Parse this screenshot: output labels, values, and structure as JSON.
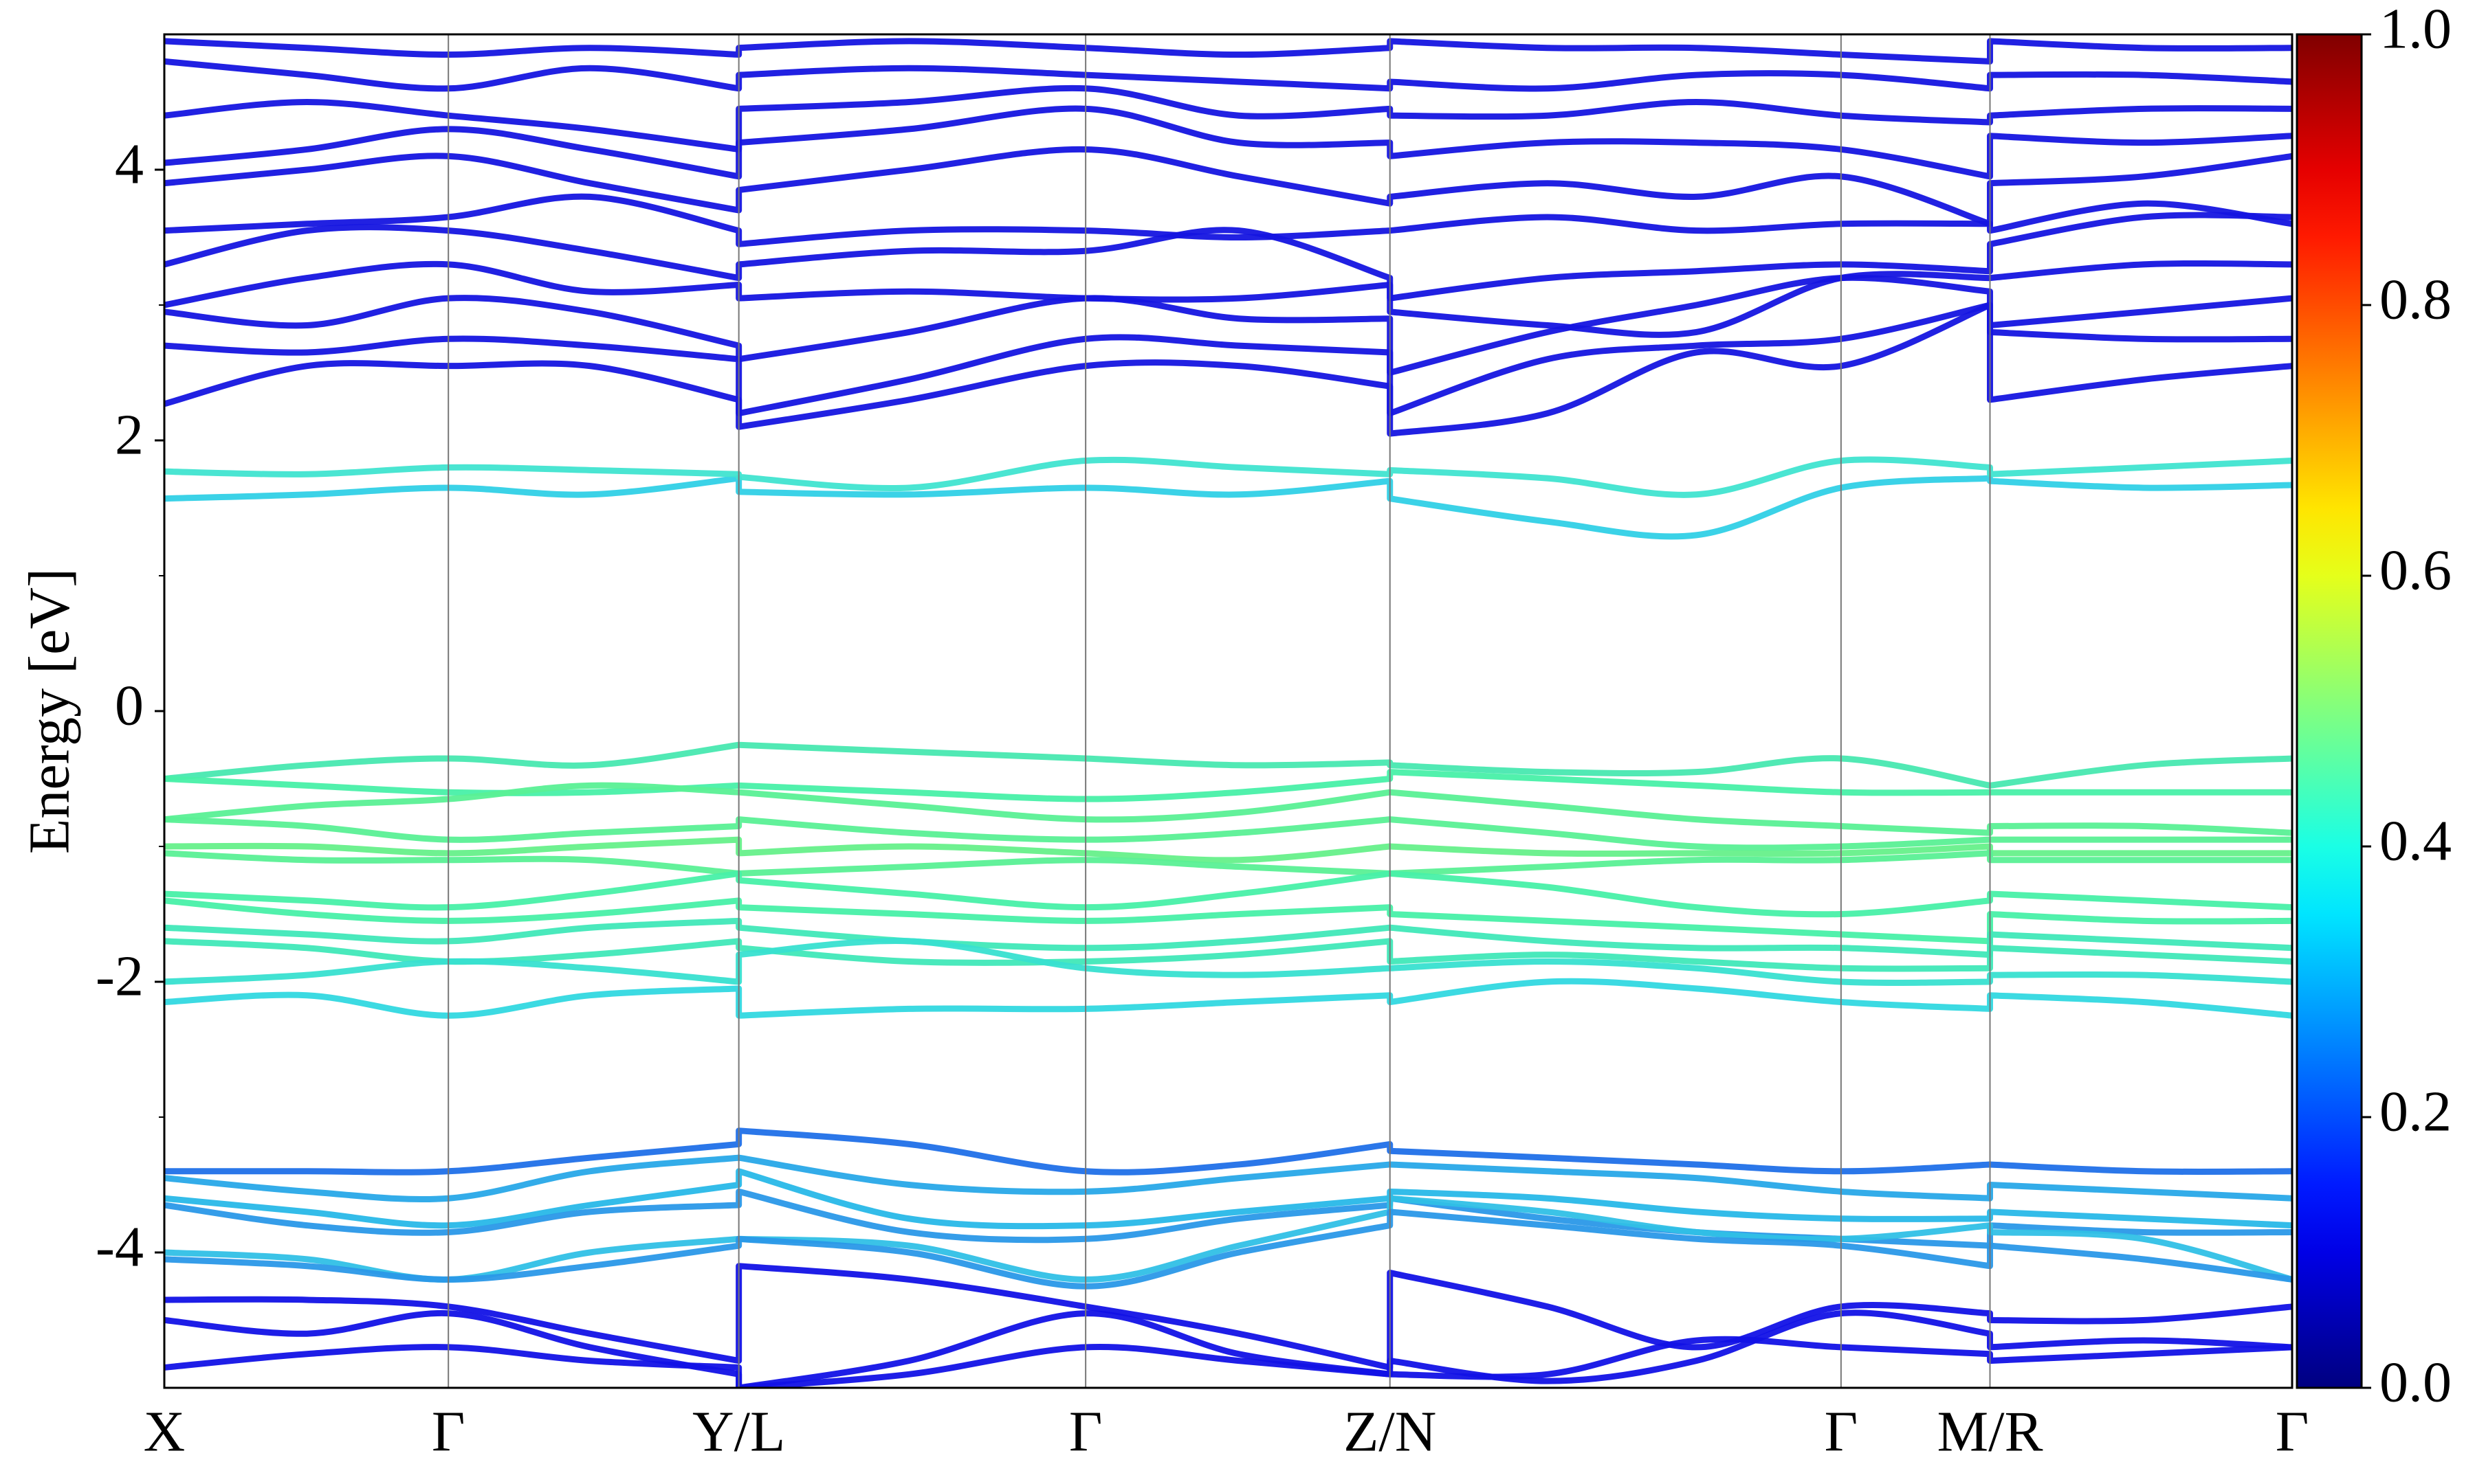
{
  "chart_data": {
    "type": "line",
    "ylabel": "Energy [eV]",
    "x": [
      0,
      0.067,
      0.1335,
      0.2,
      0.27,
      0.27,
      0.35,
      0.433,
      0.505,
      0.576,
      0.576,
      0.65,
      0.72,
      0.788,
      0.858,
      0.858,
      0.93,
      1.0
    ],
    "xlim": [
      0,
      1
    ],
    "xticks": [
      {
        "value": 0,
        "label": "X"
      },
      {
        "value": 0.1335,
        "label": "Γ"
      },
      {
        "value": 0.27,
        "label": "Y/L"
      },
      {
        "value": 0.433,
        "label": "Γ"
      },
      {
        "value": 0.576,
        "label": "Z/N"
      },
      {
        "value": 0.788,
        "label": "Γ"
      },
      {
        "value": 0.858,
        "label": "M/R"
      },
      {
        "value": 1.0,
        "label": "Γ"
      }
    ],
    "ylim": [
      -5,
      5
    ],
    "yticks": [
      -4,
      -2,
      0,
      2,
      4
    ],
    "yminorticks": [
      -3,
      -1,
      1,
      3
    ],
    "vertical_lines": true,
    "colorbar": {
      "colormap": "jet",
      "lim": [
        0,
        1
      ],
      "ticks": [
        {
          "value": 0,
          "label": "0.0"
        },
        {
          "value": 0.2,
          "label": "0.2"
        },
        {
          "value": 0.4,
          "label": "0.4"
        },
        {
          "value": 0.6,
          "label": "0.6"
        },
        {
          "value": 0.8,
          "label": "0.8"
        },
        {
          "value": 1.0,
          "label": "1.0"
        }
      ]
    },
    "series": [
      {
        "color": "#1515e0",
        "values": [
          2.27,
          2.55,
          2.55,
          2.55,
          2.3,
          2.1,
          2.3,
          2.55,
          2.55,
          2.4,
          2.05,
          2.2,
          2.65,
          2.55,
          3.0,
          2.3,
          2.45,
          2.55
        ]
      },
      {
        "color": "#1515e0",
        "values": [
          2.7,
          2.65,
          2.75,
          2.7,
          2.6,
          2.2,
          2.45,
          2.75,
          2.7,
          2.65,
          2.2,
          2.6,
          2.7,
          2.75,
          3.0,
          2.8,
          2.75,
          2.75
        ]
      },
      {
        "color": "#1515e0",
        "values": [
          2.95,
          2.85,
          3.05,
          2.95,
          2.7,
          2.6,
          2.8,
          3.05,
          2.9,
          2.9,
          2.5,
          2.8,
          3.0,
          3.2,
          3.1,
          2.85,
          2.95,
          3.05
        ]
      },
      {
        "color": "#1515e0",
        "values": [
          3.0,
          3.2,
          3.3,
          3.1,
          3.15,
          3.05,
          3.1,
          3.05,
          3.05,
          3.15,
          2.95,
          2.85,
          2.8,
          3.2,
          3.2,
          3.2,
          3.3,
          3.3
        ]
      },
      {
        "color": "#1515e0",
        "values": [
          3.3,
          3.55,
          3.55,
          3.4,
          3.2,
          3.3,
          3.4,
          3.4,
          3.55,
          3.2,
          3.05,
          3.2,
          3.25,
          3.3,
          3.25,
          3.45,
          3.65,
          3.65
        ]
      },
      {
        "color": "#1515e0",
        "values": [
          3.55,
          3.6,
          3.65,
          3.8,
          3.55,
          3.45,
          3.55,
          3.55,
          3.5,
          3.55,
          3.55,
          3.65,
          3.55,
          3.6,
          3.6,
          3.55,
          3.75,
          3.6
        ]
      },
      {
        "color": "#1515e0",
        "values": [
          3.9,
          4.0,
          4.1,
          3.9,
          3.7,
          3.85,
          4.0,
          4.15,
          3.95,
          3.75,
          3.8,
          3.9,
          3.8,
          3.95,
          3.6,
          3.9,
          3.95,
          4.1
        ]
      },
      {
        "color": "#1515e0",
        "values": [
          4.05,
          4.15,
          4.3,
          4.15,
          3.95,
          4.2,
          4.3,
          4.45,
          4.2,
          4.2,
          4.1,
          4.2,
          4.2,
          4.15,
          3.95,
          4.25,
          4.2,
          4.25
        ]
      },
      {
        "color": "#1515e0",
        "values": [
          4.4,
          4.5,
          4.4,
          4.3,
          4.15,
          4.45,
          4.5,
          4.6,
          4.4,
          4.45,
          4.4,
          4.4,
          4.5,
          4.4,
          4.35,
          4.4,
          4.45,
          4.45
        ]
      },
      {
        "color": "#1515e0",
        "values": [
          4.8,
          4.7,
          4.6,
          4.75,
          4.6,
          4.7,
          4.75,
          4.7,
          4.65,
          4.6,
          4.65,
          4.6,
          4.7,
          4.7,
          4.6,
          4.7,
          4.7,
          4.65
        ]
      },
      {
        "color": "#1515e0",
        "values": [
          4.95,
          4.9,
          4.85,
          4.9,
          4.85,
          4.9,
          4.95,
          4.9,
          4.85,
          4.9,
          4.95,
          4.9,
          4.9,
          4.85,
          4.8,
          4.95,
          4.9,
          4.9
        ]
      },
      {
        "color": "#30d0e6",
        "values": [
          1.57,
          1.6,
          1.65,
          1.6,
          1.72,
          1.62,
          1.6,
          1.65,
          1.6,
          1.7,
          1.57,
          1.4,
          1.3,
          1.65,
          1.72,
          1.7,
          1.65,
          1.67
        ]
      },
      {
        "color": "#40e4d0",
        "values": [
          1.77,
          1.75,
          1.8,
          1.78,
          1.75,
          1.73,
          1.65,
          1.85,
          1.8,
          1.75,
          1.78,
          1.72,
          1.6,
          1.85,
          1.8,
          1.75,
          1.8,
          1.85
        ]
      },
      {
        "color": "#48e8b0",
        "values": [
          -0.5,
          -0.4,
          -0.35,
          -0.4,
          -0.25,
          -0.25,
          -0.3,
          -0.35,
          -0.4,
          -0.38,
          -0.4,
          -0.45,
          -0.45,
          -0.35,
          -0.55,
          -0.55,
          -0.4,
          -0.35
        ]
      },
      {
        "color": "#48f0a8",
        "values": [
          -0.5,
          -0.55,
          -0.6,
          -0.6,
          -0.55,
          -0.55,
          -0.6,
          -0.65,
          -0.6,
          -0.5,
          -0.45,
          -0.5,
          -0.55,
          -0.6,
          -0.6,
          -0.6,
          -0.6,
          -0.6
        ]
      },
      {
        "color": "#5af095",
        "values": [
          -0.8,
          -0.7,
          -0.65,
          -0.55,
          -0.6,
          -0.6,
          -0.7,
          -0.8,
          -0.75,
          -0.6,
          -0.6,
          -0.7,
          -0.8,
          -0.85,
          -0.9,
          -0.85,
          -0.85,
          -0.9
        ]
      },
      {
        "color": "#5af095",
        "values": [
          -0.8,
          -0.85,
          -0.95,
          -0.9,
          -0.85,
          -0.8,
          -0.9,
          -0.95,
          -0.9,
          -0.8,
          -0.8,
          -0.9,
          -1.0,
          -1.0,
          -0.95,
          -0.95,
          -0.95,
          -0.95
        ]
      },
      {
        "color": "#66f08a",
        "values": [
          -1.0,
          -1.0,
          -1.05,
          -1.0,
          -0.95,
          -1.05,
          -1.0,
          -1.05,
          -1.1,
          -1.0,
          -1.0,
          -1.05,
          -1.05,
          -1.05,
          -1.0,
          -1.05,
          -1.05,
          -1.05
        ]
      },
      {
        "color": "#5af095",
        "values": [
          -1.05,
          -1.1,
          -1.1,
          -1.1,
          -1.2,
          -1.2,
          -1.15,
          -1.1,
          -1.15,
          -1.2,
          -1.2,
          -1.15,
          -1.1,
          -1.1,
          -1.05,
          -1.1,
          -1.1,
          -1.1
        ]
      },
      {
        "color": "#48f0a8",
        "values": [
          -1.35,
          -1.4,
          -1.45,
          -1.35,
          -1.2,
          -1.25,
          -1.35,
          -1.45,
          -1.35,
          -1.2,
          -1.2,
          -1.3,
          -1.45,
          -1.5,
          -1.4,
          -1.35,
          -1.4,
          -1.45
        ]
      },
      {
        "color": "#48f0a8",
        "values": [
          -1.4,
          -1.5,
          -1.55,
          -1.5,
          -1.4,
          -1.45,
          -1.5,
          -1.55,
          -1.5,
          -1.45,
          -1.5,
          -1.55,
          -1.6,
          -1.65,
          -1.7,
          -1.5,
          -1.55,
          -1.55
        ]
      },
      {
        "color": "#40e8b8",
        "values": [
          -1.6,
          -1.65,
          -1.7,
          -1.6,
          -1.55,
          -1.6,
          -1.7,
          -1.75,
          -1.7,
          -1.6,
          -1.6,
          -1.7,
          -1.75,
          -1.75,
          -1.8,
          -1.65,
          -1.7,
          -1.75
        ]
      },
      {
        "color": "#40e8b8",
        "values": [
          -1.7,
          -1.75,
          -1.85,
          -1.8,
          -1.7,
          -1.75,
          -1.85,
          -1.85,
          -1.8,
          -1.7,
          -1.85,
          -1.8,
          -1.85,
          -1.9,
          -1.9,
          -1.75,
          -1.8,
          -1.85
        ]
      },
      {
        "color": "#38e0d0",
        "values": [
          -2.0,
          -1.95,
          -1.85,
          -1.9,
          -2.0,
          -1.8,
          -1.7,
          -1.9,
          -1.95,
          -1.9,
          -1.9,
          -1.85,
          -1.9,
          -2.0,
          -2.0,
          -1.95,
          -1.95,
          -2.0
        ]
      },
      {
        "color": "#32d8e0",
        "values": [
          -2.15,
          -2.1,
          -2.25,
          -2.1,
          -2.05,
          -2.25,
          -2.2,
          -2.2,
          -2.15,
          -2.1,
          -2.15,
          -2.0,
          -2.05,
          -2.15,
          -2.2,
          -2.1,
          -2.15,
          -2.25
        ]
      },
      {
        "color": "#2070e8",
        "values": [
          -3.4,
          -3.4,
          -3.4,
          -3.3,
          -3.2,
          -3.1,
          -3.2,
          -3.4,
          -3.35,
          -3.2,
          -3.25,
          -3.3,
          -3.35,
          -3.4,
          -3.35,
          -3.35,
          -3.4,
          -3.4
        ]
      },
      {
        "color": "#28a8e8",
        "values": [
          -3.45,
          -3.55,
          -3.6,
          -3.4,
          -3.3,
          -3.3,
          -3.5,
          -3.55,
          -3.45,
          -3.35,
          -3.35,
          -3.4,
          -3.45,
          -3.55,
          -3.6,
          -3.5,
          -3.55,
          -3.6
        ]
      },
      {
        "color": "#28b8e8",
        "values": [
          -3.6,
          -3.7,
          -3.8,
          -3.65,
          -3.5,
          -3.4,
          -3.75,
          -3.8,
          -3.7,
          -3.6,
          -3.55,
          -3.6,
          -3.7,
          -3.75,
          -3.75,
          -3.7,
          -3.75,
          -3.8
        ]
      },
      {
        "color": "#2a98e8",
        "values": [
          -3.65,
          -3.8,
          -3.85,
          -3.7,
          -3.65,
          -3.55,
          -3.85,
          -3.9,
          -3.75,
          -3.65,
          -3.6,
          -3.75,
          -3.85,
          -3.9,
          -3.95,
          -3.8,
          -3.85,
          -3.85
        ]
      },
      {
        "color": "#30c0e6",
        "values": [
          -4.0,
          -4.05,
          -4.2,
          -4.0,
          -3.9,
          -3.9,
          -3.95,
          -4.2,
          -3.95,
          -3.7,
          -3.6,
          -3.7,
          -3.85,
          -3.9,
          -3.8,
          -3.85,
          -3.9,
          -4.2
        ]
      },
      {
        "color": "#2a98e8",
        "values": [
          -4.05,
          -4.1,
          -4.2,
          -4.1,
          -3.95,
          -3.9,
          -4.0,
          -4.25,
          -4.0,
          -3.8,
          -3.7,
          -3.8,
          -3.9,
          -3.95,
          -4.1,
          -3.95,
          -4.05,
          -4.2
        ]
      },
      {
        "color": "#1212e6",
        "values": [
          -4.35,
          -4.35,
          -4.4,
          -4.6,
          -4.8,
          -4.1,
          -4.2,
          -4.4,
          -4.6,
          -4.85,
          -4.15,
          -4.4,
          -4.7,
          -4.4,
          -4.45,
          -4.5,
          -4.5,
          -4.4
        ]
      },
      {
        "color": "#1212e6",
        "values": [
          -4.5,
          -4.6,
          -4.45,
          -4.7,
          -4.9,
          -5.0,
          -4.8,
          -4.45,
          -4.75,
          -4.9,
          -4.8,
          -4.95,
          -4.8,
          -4.45,
          -4.6,
          -4.7,
          -4.65,
          -4.7
        ]
      },
      {
        "color": "#1212e6",
        "values": [
          -4.85,
          -4.75,
          -4.7,
          -4.8,
          -4.85,
          -5.0,
          -4.9,
          -4.7,
          -4.8,
          -4.9,
          -4.9,
          -4.9,
          -4.65,
          -4.7,
          -4.75,
          -4.8,
          -4.75,
          -4.7
        ]
      }
    ]
  }
}
